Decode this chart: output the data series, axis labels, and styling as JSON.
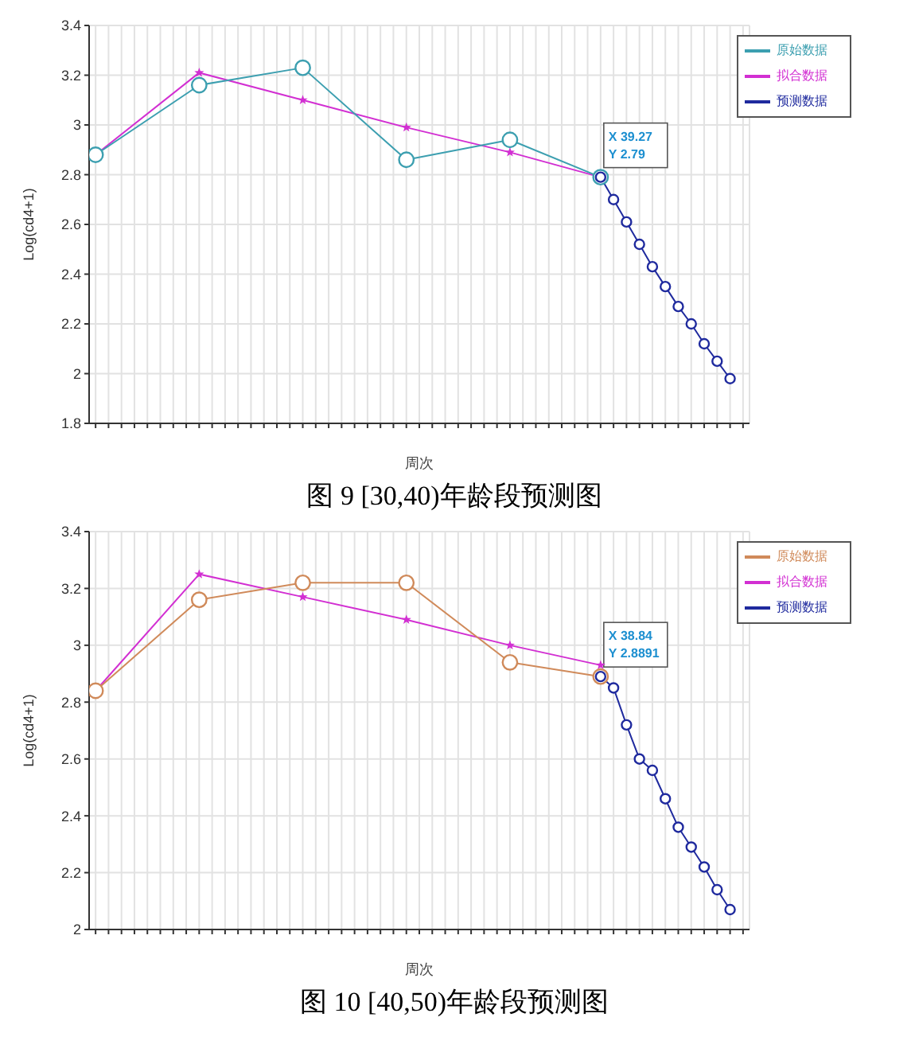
{
  "chart_data": [
    {
      "type": "line",
      "title": "图 9 [30,40)年龄段预测图",
      "xlabel": "周次",
      "ylabel": "Log(cd4+1)",
      "categories": [
        null,
        null,
        null,
        null,
        null,
        null,
        null,
        null,
        null,
        null,
        null,
        null,
        null,
        null,
        null,
        null,
        null,
        null,
        null,
        null,
        null,
        null,
        null,
        null,
        null,
        null,
        null,
        null,
        null,
        null,
        null,
        null,
        null,
        null,
        null,
        null,
        null,
        null,
        null,
        null,
        null,
        null,
        null,
        null,
        null,
        null,
        null,
        null,
        null,
        null,
        null
      ],
      "series": [
        {
          "name": "原始数据",
          "color": "#3c9fb0",
          "marker": "circle",
          "values": [
            2.88,
            null,
            null,
            null,
            null,
            null,
            null,
            null,
            3.16,
            null,
            null,
            null,
            null,
            null,
            null,
            null,
            3.23,
            null,
            null,
            null,
            null,
            null,
            null,
            null,
            2.86,
            null,
            null,
            null,
            null,
            null,
            null,
            null,
            2.94,
            null,
            null,
            null,
            null,
            null,
            null,
            2.79,
            null,
            null,
            null,
            null,
            null,
            null,
            null,
            null,
            null,
            null,
            null
          ]
        },
        {
          "name": "拟合数据",
          "color": "#d22fd2",
          "marker": "star",
          "values": [
            2.88,
            null,
            null,
            null,
            null,
            null,
            null,
            null,
            3.21,
            null,
            null,
            null,
            null,
            null,
            null,
            null,
            3.1,
            null,
            null,
            null,
            null,
            null,
            null,
            null,
            2.99,
            null,
            null,
            null,
            null,
            null,
            null,
            null,
            2.89,
            null,
            null,
            null,
            null,
            null,
            null,
            2.79,
            null,
            null,
            null,
            null,
            null,
            null,
            null,
            null,
            null,
            null,
            null
          ]
        },
        {
          "name": "预测数据",
          "color": "#1f2a9e",
          "marker": "circle",
          "values": [
            null,
            null,
            null,
            null,
            null,
            null,
            null,
            null,
            null,
            null,
            null,
            null,
            null,
            null,
            null,
            null,
            null,
            null,
            null,
            null,
            null,
            null,
            null,
            null,
            null,
            null,
            null,
            null,
            null,
            null,
            null,
            null,
            null,
            null,
            null,
            null,
            null,
            null,
            null,
            2.79,
            2.7,
            2.61,
            2.52,
            2.43,
            2.35,
            2.27,
            2.2,
            2.12,
            2.05,
            1.98,
            null
          ]
        }
      ],
      "ylim": [
        1.8,
        3.4
      ],
      "yticks": [
        1.8,
        2,
        2.2,
        2.4,
        2.6,
        2.8,
        3,
        3.2,
        3.4
      ],
      "grid": true,
      "legend": "top right",
      "annotations": [
        "X 39.27\nY 2.79"
      ]
    },
    {
      "type": "line",
      "title": "图 10 [40,50)年龄段预测图",
      "xlabel": "周次",
      "ylabel": "Log(cd4+1)",
      "categories": [
        null,
        null,
        null,
        null,
        null,
        null,
        null,
        null,
        null,
        null,
        null,
        null,
        null,
        null,
        null,
        null,
        null,
        null,
        null,
        null,
        null,
        null,
        null,
        null,
        null,
        null,
        null,
        null,
        null,
        null,
        null,
        null,
        null,
        null,
        null,
        null,
        null,
        null,
        null,
        null,
        null,
        null,
        null,
        null,
        null,
        null,
        null,
        null,
        null,
        null,
        null
      ],
      "series": [
        {
          "name": "原始数据",
          "color": "#d08a5a",
          "marker": "circle",
          "values": [
            2.84,
            null,
            null,
            null,
            null,
            null,
            null,
            null,
            3.16,
            null,
            null,
            null,
            null,
            null,
            null,
            null,
            3.22,
            null,
            null,
            null,
            null,
            null,
            null,
            null,
            3.22,
            null,
            null,
            null,
            null,
            null,
            null,
            null,
            2.94,
            null,
            null,
            null,
            null,
            null,
            null,
            2.89,
            null,
            null,
            null,
            null,
            null,
            null,
            null,
            null,
            null,
            null,
            null
          ]
        },
        {
          "name": "拟合数据",
          "color": "#d22fd2",
          "marker": "star",
          "values": [
            2.84,
            null,
            null,
            null,
            null,
            null,
            null,
            null,
            3.25,
            null,
            null,
            null,
            null,
            null,
            null,
            null,
            3.17,
            null,
            null,
            null,
            null,
            null,
            null,
            null,
            3.09,
            null,
            null,
            null,
            null,
            null,
            null,
            null,
            3.0,
            null,
            null,
            null,
            null,
            null,
            null,
            2.93,
            null,
            null,
            null,
            null,
            null,
            null,
            null,
            null,
            null,
            null,
            null
          ]
        },
        {
          "name": "预测数据",
          "color": "#1f2a9e",
          "marker": "circle",
          "values": [
            null,
            null,
            null,
            null,
            null,
            null,
            null,
            null,
            null,
            null,
            null,
            null,
            null,
            null,
            null,
            null,
            null,
            null,
            null,
            null,
            null,
            null,
            null,
            null,
            null,
            null,
            null,
            null,
            null,
            null,
            null,
            null,
            null,
            null,
            null,
            null,
            null,
            null,
            null,
            2.89,
            2.85,
            2.72,
            2.6,
            2.56,
            2.46,
            2.36,
            2.29,
            2.22,
            2.14,
            2.07,
            null
          ]
        }
      ],
      "ylim": [
        2,
        3.4
      ],
      "yticks": [
        2,
        2.2,
        2.4,
        2.6,
        2.8,
        3,
        3.2,
        3.4
      ],
      "grid": true,
      "legend": "top right",
      "annotations": [
        "X 38.84\nY 2.8891"
      ]
    }
  ]
}
